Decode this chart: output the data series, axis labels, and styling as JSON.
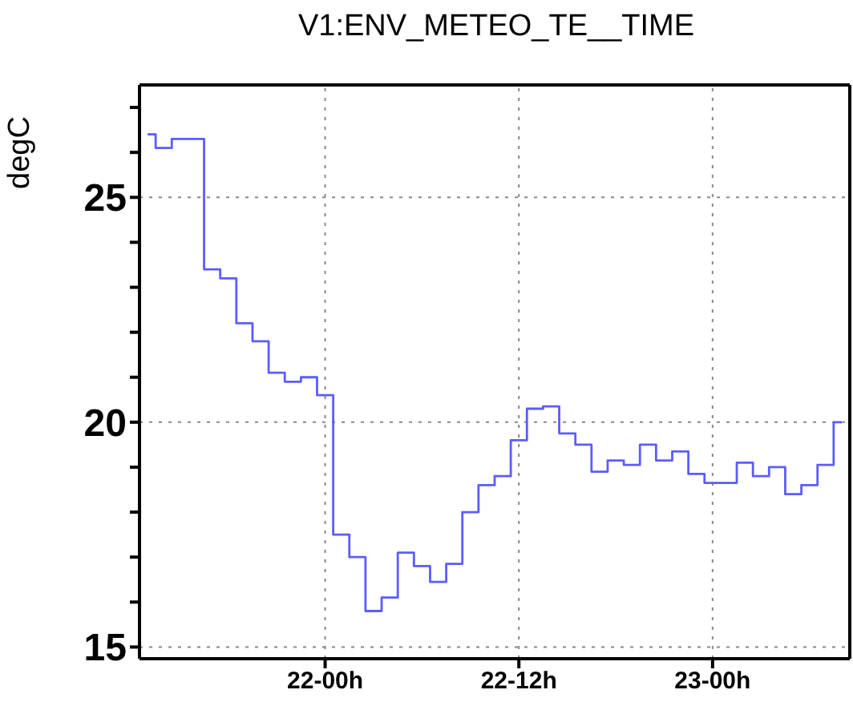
{
  "chart_data": {
    "type": "step",
    "title": "V1:ENV_METEO_TE__TIME",
    "ylabel": "degC",
    "categories": [
      null,
      null,
      null,
      null,
      null,
      null,
      null,
      null,
      null,
      null,
      null,
      "22-00h",
      null,
      null,
      null,
      null,
      null,
      null,
      null,
      null,
      null,
      null,
      null,
      "22-12h",
      null,
      null,
      null,
      null,
      null,
      null,
      null,
      null,
      null,
      null,
      null,
      "23-00h",
      null,
      null,
      null,
      null,
      null,
      null,
      null,
      null
    ],
    "series": [
      {
        "color": "#5c5cff",
        "values": [
          26.4,
          26.1,
          26.3,
          26.3,
          23.4,
          23.2,
          22.2,
          21.8,
          21.1,
          20.9,
          21.0,
          20.6,
          17.5,
          17.0,
          15.8,
          16.1,
          17.1,
          16.8,
          16.45,
          16.85,
          18.0,
          18.6,
          18.8,
          19.6,
          20.3,
          20.35,
          19.75,
          19.5,
          18.9,
          19.15,
          19.05,
          19.5,
          19.15,
          19.35,
          18.85,
          18.65,
          18.65,
          19.1,
          18.8,
          19.0,
          18.4,
          18.6,
          19.05,
          20.0
        ]
      }
    ],
    "ylim": [
      14.74,
      27.5
    ],
    "yticks": [
      15,
      {
        "value": 16,
        "label": null
      },
      {
        "value": 17,
        "label": null
      },
      {
        "value": 18,
        "label": null
      },
      {
        "value": 19,
        "label": null
      },
      20,
      {
        "value": 21,
        "label": null
      },
      {
        "value": 22,
        "label": null
      },
      {
        "value": 23,
        "label": null
      },
      {
        "value": 24,
        "label": null
      },
      25,
      {
        "value": 26,
        "label": null
      },
      {
        "value": 27,
        "label": null
      }
    ],
    "grid": true,
    "marker": "none",
    "line_style": "solid"
  }
}
